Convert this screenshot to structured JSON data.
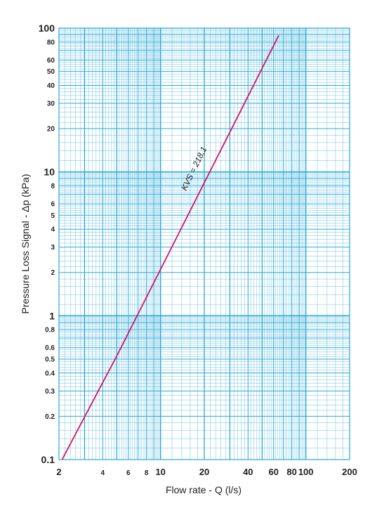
{
  "chart_data": {
    "type": "line",
    "title": "",
    "xlabel": "Flow rate - Q (l/s)",
    "ylabel": "Pressure Loss Signal - Δp (kPa)",
    "xscale": "log",
    "yscale": "log",
    "xlim": [
      2,
      200
    ],
    "ylim": [
      0.1,
      100
    ],
    "grid": true,
    "legend": "none",
    "x_ticks": [
      "2",
      "4",
      "6",
      "8",
      "10",
      "20",
      "40",
      "60",
      "80",
      "100",
      "200"
    ],
    "y_ticks": [
      "100",
      "80",
      "60",
      "50",
      "40",
      "30",
      "20",
      "10",
      "8",
      "6",
      "5",
      "4",
      "3",
      "2",
      "1",
      "0.8",
      "0.6",
      "0.5",
      "0.4",
      "0.3",
      "0.2",
      "0.1"
    ],
    "series": [
      {
        "x": [
          2.1,
          5,
          10,
          20,
          40,
          65
        ],
        "y": [
          0.1,
          0.526,
          2.1,
          8.41,
          33.6,
          88.8
        ]
      }
    ],
    "annotation": "KVS = 218,1"
  },
  "colors": {
    "grid": "#29a9d6",
    "line": "#d4136f",
    "text": "#222222"
  }
}
